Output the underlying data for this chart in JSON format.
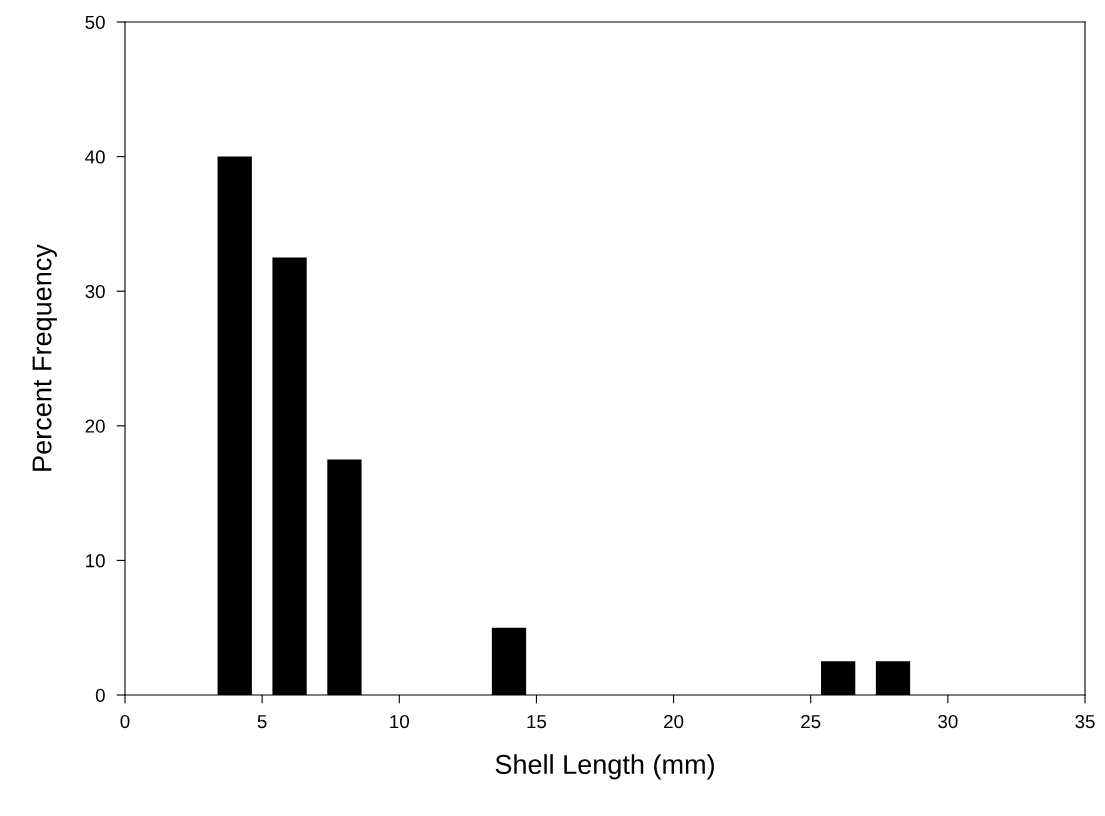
{
  "chart_data": {
    "type": "bar",
    "xlabel": "Shell Length (mm)",
    "ylabel": "Percent Frequency",
    "x": [
      4,
      6,
      8,
      14,
      26,
      28
    ],
    "values": [
      40,
      32.5,
      17.5,
      5,
      2.5,
      2.5
    ],
    "color": "#000000",
    "xlim": [
      0,
      35
    ],
    "xticks": [
      0,
      5,
      10,
      15,
      20,
      25,
      30,
      35
    ],
    "ylim": [
      0,
      50
    ],
    "yticks": [
      0,
      10,
      20,
      30,
      40,
      50
    ],
    "grid": false,
    "legend": false
  }
}
